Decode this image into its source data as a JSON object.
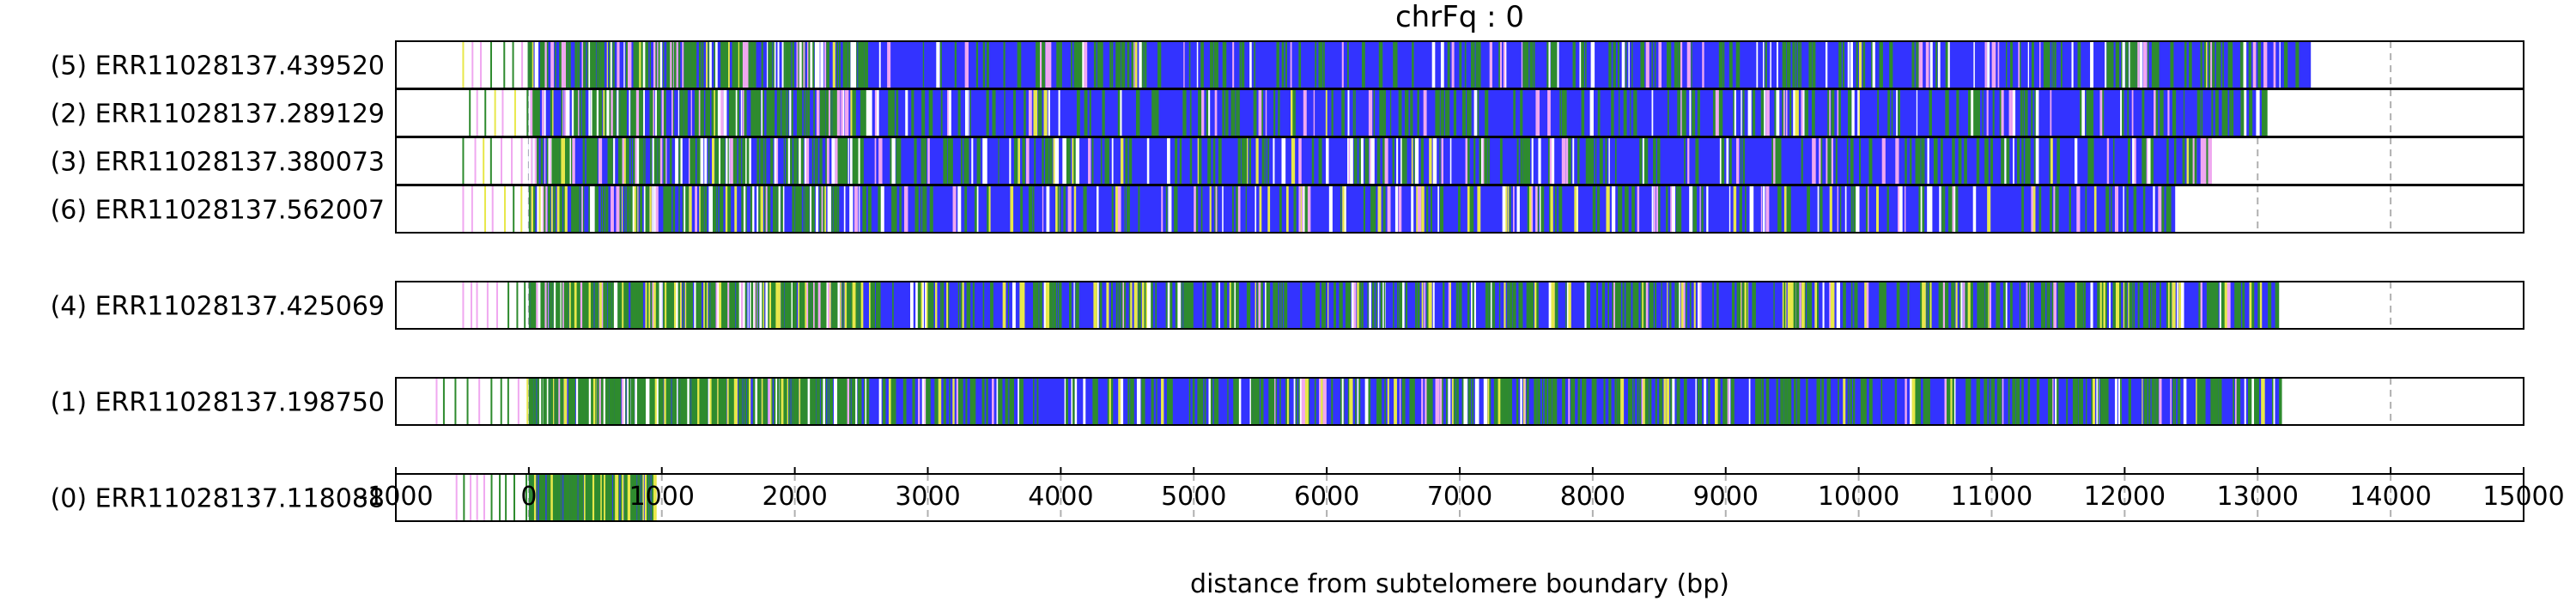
{
  "chart_data": {
    "type": "heatmap",
    "title": "chrFq : 0",
    "xlabel": "distance from subtelomere boundary (bp)",
    "xlim": [
      -1000,
      15000
    ],
    "xticks": [
      -1000,
      0,
      1000,
      2000,
      3000,
      4000,
      5000,
      6000,
      7000,
      8000,
      9000,
      10000,
      11000,
      12000,
      13000,
      14000,
      15000
    ],
    "grid": "vertical dashed at each x tick",
    "colors": {
      "main": "#3333ff",
      "green": "#2e8b2e",
      "yellow": "#e8e84a",
      "pink": "#f0a8f0",
      "white": "#ffffff",
      "red": "#cc3333",
      "grid": "#b0b0b0",
      "frame": "#000000"
    },
    "groups": [
      {
        "reads": [
          {
            "label": "(5) ERR11028137.439520",
            "start": -500,
            "end": 13400,
            "mix": [
              [
                "green",
                0.2
              ],
              [
                "white",
                0.05
              ],
              [
                "pink",
                0.04
              ],
              [
                "yellow",
                0.01
              ]
            ]
          },
          {
            "label": "(2) ERR11028137.289129",
            "start": -450,
            "end": 13050,
            "mix": [
              [
                "green",
                0.2
              ],
              [
                "white",
                0.05
              ],
              [
                "pink",
                0.04
              ],
              [
                "yellow",
                0.01
              ]
            ]
          },
          {
            "label": "(3) ERR11028137.380073",
            "start": -500,
            "end": 12650,
            "mix": [
              [
                "green",
                0.2
              ],
              [
                "white",
                0.05
              ],
              [
                "pink",
                0.04
              ],
              [
                "yellow",
                0.01
              ]
            ]
          },
          {
            "label": "(6) ERR11028137.562007",
            "start": -500,
            "end": 12380,
            "mix": [
              [
                "green",
                0.15
              ],
              [
                "white",
                0.05
              ],
              [
                "pink",
                0.04
              ],
              [
                "yellow",
                0.04
              ]
            ]
          }
        ]
      },
      {
        "reads": [
          {
            "label": "(4) ERR11028137.425069",
            "start": -500,
            "end": 13150,
            "mix": [
              [
                "green",
                0.3
              ],
              [
                "yellow",
                0.07
              ],
              [
                "white",
                0.05
              ],
              [
                "pink",
                0.03
              ]
            ]
          }
        ]
      },
      {
        "reads": [
          {
            "label": "(1) ERR11028137.198750",
            "start": -700,
            "end": 13170,
            "mix": [
              [
                "green",
                0.3
              ],
              [
                "yellow",
                0.04
              ],
              [
                "white",
                0.05
              ],
              [
                "pink",
                0.03
              ]
            ]
          }
        ]
      },
      {
        "reads": [
          {
            "label": "(0) ERR11028137.118088",
            "start": -550,
            "end": 950,
            "mix": [
              [
                "green",
                0.35
              ],
              [
                "yellow",
                0.2
              ],
              [
                "white",
                0.05
              ],
              [
                "pink",
                0.03
              ]
            ]
          }
        ]
      }
    ]
  }
}
